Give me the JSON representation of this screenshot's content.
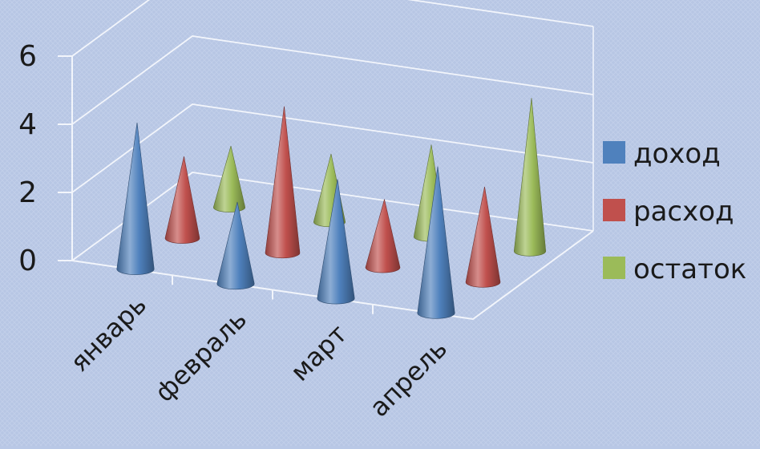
{
  "chart_data": {
    "type": "bar",
    "style": "3d-cone",
    "categories": [
      "январь",
      "февраль",
      "март",
      "апрель"
    ],
    "series": [
      {
        "name": "доход",
        "values": [
          4.3,
          2.4,
          3.5,
          4.3
        ],
        "color": "#4f81bd"
      },
      {
        "name": "расход",
        "values": [
          2.4,
          4.3,
          2.0,
          2.8
        ],
        "color": "#c0504d"
      },
      {
        "name": "остаток",
        "values": [
          1.8,
          2.0,
          2.7,
          4.5
        ],
        "color": "#9bbb59"
      }
    ],
    "ylim": [
      0,
      6
    ],
    "yticks": [
      0,
      2,
      4,
      6
    ],
    "grid": true,
    "legend_position": "right"
  }
}
